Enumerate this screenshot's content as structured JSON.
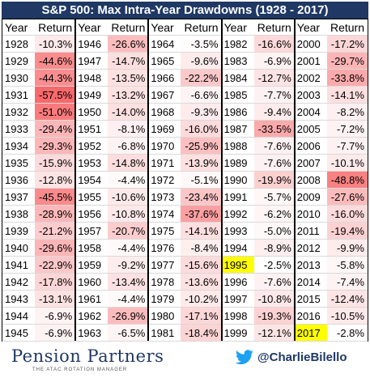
{
  "header": {
    "title": "S&P 500: Max Intra-Year Drawdowns (1928 - 2017)"
  },
  "table": {
    "headers": [
      "Year",
      "Return"
    ],
    "groups": [
      [
        {
          "year": "1928",
          "return": "-10.3%"
        },
        {
          "year": "1929",
          "return": "-44.6%"
        },
        {
          "year": "1930",
          "return": "-44.3%"
        },
        {
          "year": "1931",
          "return": "-57.5%"
        },
        {
          "year": "1932",
          "return": "-51.0%"
        },
        {
          "year": "1933",
          "return": "-29.4%"
        },
        {
          "year": "1934",
          "return": "-29.3%"
        },
        {
          "year": "1935",
          "return": "-15.9%"
        },
        {
          "year": "1936",
          "return": "-12.8%"
        },
        {
          "year": "1937",
          "return": "-45.5%"
        },
        {
          "year": "1938",
          "return": "-28.9%"
        },
        {
          "year": "1939",
          "return": "-21.2%"
        },
        {
          "year": "1940",
          "return": "-29.6%"
        },
        {
          "year": "1941",
          "return": "-22.9%"
        },
        {
          "year": "1942",
          "return": "-17.8%"
        },
        {
          "year": "1943",
          "return": "-13.1%"
        },
        {
          "year": "1944",
          "return": "-6.9%"
        },
        {
          "year": "1945",
          "return": "-6.9%"
        }
      ],
      [
        {
          "year": "1946",
          "return": "-26.6%"
        },
        {
          "year": "1947",
          "return": "-14.7%"
        },
        {
          "year": "1948",
          "return": "-13.5%"
        },
        {
          "year": "1949",
          "return": "-13.2%"
        },
        {
          "year": "1950",
          "return": "-14.0%"
        },
        {
          "year": "1951",
          "return": "-8.1%"
        },
        {
          "year": "1952",
          "return": "-6.8%"
        },
        {
          "year": "1953",
          "return": "-14.8%"
        },
        {
          "year": "1954",
          "return": "-4.4%"
        },
        {
          "year": "1955",
          "return": "-10.6%"
        },
        {
          "year": "1956",
          "return": "-10.8%"
        },
        {
          "year": "1957",
          "return": "-20.7%"
        },
        {
          "year": "1958",
          "return": "-4.4%"
        },
        {
          "year": "1959",
          "return": "-9.2%"
        },
        {
          "year": "1960",
          "return": "-13.4%"
        },
        {
          "year": "1961",
          "return": "-4.4%"
        },
        {
          "year": "1962",
          "return": "-26.9%"
        },
        {
          "year": "1963",
          "return": "-6.5%"
        }
      ],
      [
        {
          "year": "1964",
          "return": "-3.5%"
        },
        {
          "year": "1965",
          "return": "-9.6%"
        },
        {
          "year": "1966",
          "return": "-22.2%"
        },
        {
          "year": "1967",
          "return": "-6.6%"
        },
        {
          "year": "1968",
          "return": "-9.3%"
        },
        {
          "year": "1969",
          "return": "-16.0%"
        },
        {
          "year": "1970",
          "return": "-25.9%"
        },
        {
          "year": "1971",
          "return": "-13.9%"
        },
        {
          "year": "1972",
          "return": "-5.1%"
        },
        {
          "year": "1973",
          "return": "-23.4%"
        },
        {
          "year": "1974",
          "return": "-37.6%"
        },
        {
          "year": "1975",
          "return": "-14.1%"
        },
        {
          "year": "1976",
          "return": "-8.4%"
        },
        {
          "year": "1977",
          "return": "-15.6%"
        },
        {
          "year": "1978",
          "return": "-13.6%"
        },
        {
          "year": "1979",
          "return": "-10.2%"
        },
        {
          "year": "1980",
          "return": "-17.1%"
        },
        {
          "year": "1981",
          "return": "-18.4%"
        }
      ],
      [
        {
          "year": "1982",
          "return": "-16.6%"
        },
        {
          "year": "1983",
          "return": "-6.9%"
        },
        {
          "year": "1984",
          "return": "-12.7%"
        },
        {
          "year": "1985",
          "return": "-7.7%"
        },
        {
          "year": "1986",
          "return": "-9.4%"
        },
        {
          "year": "1987",
          "return": "-33.5%"
        },
        {
          "year": "1988",
          "return": "-7.6%"
        },
        {
          "year": "1989",
          "return": "-7.6%"
        },
        {
          "year": "1990",
          "return": "-19.9%"
        },
        {
          "year": "1991",
          "return": "-5.7%"
        },
        {
          "year": "1992",
          "return": "-6.2%"
        },
        {
          "year": "1993",
          "return": "-5.0%"
        },
        {
          "year": "1994",
          "return": "-8.9%"
        },
        {
          "year": "1995",
          "return": "-2.5%",
          "highlight": true
        },
        {
          "year": "1996",
          "return": "-7.6%"
        },
        {
          "year": "1997",
          "return": "-10.8%"
        },
        {
          "year": "1998",
          "return": "-19.3%"
        },
        {
          "year": "1999",
          "return": "-12.1%"
        }
      ],
      [
        {
          "year": "2000",
          "return": "-17.2%"
        },
        {
          "year": "2001",
          "return": "-29.7%"
        },
        {
          "year": "2002",
          "return": "-33.8%"
        },
        {
          "year": "2003",
          "return": "-14.1%"
        },
        {
          "year": "2004",
          "return": "-8.2%"
        },
        {
          "year": "2005",
          "return": "-7.2%"
        },
        {
          "year": "2006",
          "return": "-7.7%"
        },
        {
          "year": "2007",
          "return": "-10.1%"
        },
        {
          "year": "2008",
          "return": "-48.8%"
        },
        {
          "year": "2009",
          "return": "-27.6%"
        },
        {
          "year": "2010",
          "return": "-16.0%"
        },
        {
          "year": "2011",
          "return": "-19.4%"
        },
        {
          "year": "2012",
          "return": "-9.9%"
        },
        {
          "year": "2013",
          "return": "-5.8%"
        },
        {
          "year": "2014",
          "return": "-7.4%"
        },
        {
          "year": "2015",
          "return": "-12.4%"
        },
        {
          "year": "2016",
          "return": "-10.5%"
        },
        {
          "year": "2017",
          "return": "-2.8%",
          "highlight": true
        }
      ]
    ]
  },
  "footer": {
    "logo": "Pension Partners",
    "tagline": "THE ATAC ROTATION MANAGER",
    "handle": "@CharlieBilello"
  }
}
